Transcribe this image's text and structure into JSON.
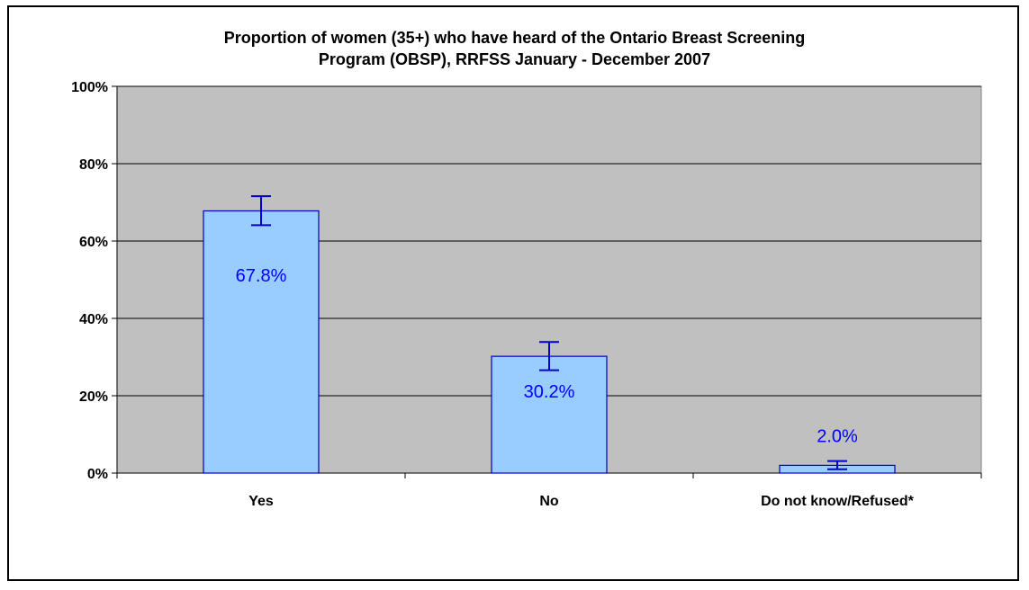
{
  "chart_data": {
    "type": "bar",
    "title_lines": [
      "Proportion of women (35+) who have heard of the Ontario Breast Screening",
      "Program (OBSP), RRFSS January - December 2007"
    ],
    "categories": [
      "Yes",
      "No",
      "Do not know/Refused*"
    ],
    "values": [
      67.8,
      30.2,
      2.0
    ],
    "data_labels": [
      "67.8%",
      "30.2%",
      "2.0%"
    ],
    "error_bars": [
      {
        "low": 64.1,
        "high": 71.6
      },
      {
        "low": 26.6,
        "high": 33.9
      },
      {
        "low": 1.0,
        "high": 3.1
      }
    ],
    "ylim": [
      0,
      100
    ],
    "yticks": [
      0,
      20,
      40,
      60,
      80,
      100
    ],
    "ytick_labels": [
      "0%",
      "20%",
      "40%",
      "60%",
      "80%",
      "100%"
    ],
    "grid": true,
    "colors": {
      "plot_bg": "#c0c0c0",
      "bar_fill": "#99ccff",
      "bar_stroke": "#0000cc",
      "label": "#0000ff",
      "gridline": "#000000"
    }
  }
}
